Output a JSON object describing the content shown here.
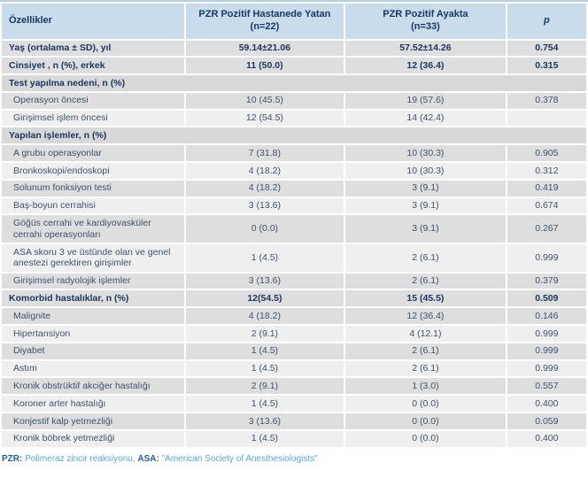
{
  "colors": {
    "header_bg": "#c8dcec",
    "row_dark_bg": "#dedede",
    "row_light_bg": "#efefef",
    "section_bg": "#d8d8d8",
    "heading_text": "#17375e",
    "body_text": "#3f5169",
    "footnote_abbr": "#1c5f93",
    "footnote_text": "#58a6d2"
  },
  "table": {
    "columns": [
      {
        "label": "Özellikler",
        "sub": ""
      },
      {
        "label": "PZR Pozitif Hastanede Yatan",
        "sub": "(n=22)"
      },
      {
        "label": "PZR Pozitif Ayakta",
        "sub": "(n=33)"
      },
      {
        "label": "p",
        "sub": ""
      }
    ],
    "rows": [
      {
        "label": "Yaş (ortalama ± SD), yıl",
        "bold": true,
        "indent": false,
        "shade": "dark",
        "section": false,
        "values": [
          "59.14±21.06",
          "57.52±14.26",
          "0.754"
        ]
      },
      {
        "label": "Cinsiyet , n (%), erkek",
        "bold": true,
        "indent": false,
        "shade": "dark",
        "section": false,
        "values": [
          "11 (50.0)",
          "12 (36.4)",
          "0.315"
        ]
      },
      {
        "label": "Test yapılma nedeni, n (%)",
        "bold": true,
        "indent": false,
        "shade": "dark",
        "section": true,
        "values": []
      },
      {
        "label": "Operasyon öncesi",
        "bold": false,
        "indent": true,
        "shade": "dark",
        "section": false,
        "values": [
          "10 (45.5)",
          "19 (57.6)",
          "0.378"
        ]
      },
      {
        "label": "Girişimsel işlem öncesi",
        "bold": false,
        "indent": true,
        "shade": "light",
        "section": false,
        "values": [
          "12 (54.5)",
          "14 (42.4)",
          ""
        ]
      },
      {
        "label": "Yapılan işlemler, n (%)",
        "bold": true,
        "indent": false,
        "shade": "dark",
        "section": true,
        "values": []
      },
      {
        "label": "A grubu operasyonlar",
        "bold": false,
        "indent": true,
        "shade": "dark",
        "section": false,
        "values": [
          "7 (31.8)",
          "10 (30.3)",
          "0.905"
        ]
      },
      {
        "label": "Bronkoskopi/endoskopi",
        "bold": false,
        "indent": true,
        "shade": "light",
        "section": false,
        "values": [
          "4 (18.2)",
          "10 (30.3)",
          "0.312"
        ]
      },
      {
        "label": "Solunum fonksiyon testi",
        "bold": false,
        "indent": true,
        "shade": "dark",
        "section": false,
        "values": [
          "4 (18.2)",
          "3 (9.1)",
          "0.419"
        ]
      },
      {
        "label": "Baş-boyun cerrahisi",
        "bold": false,
        "indent": true,
        "shade": "light",
        "section": false,
        "values": [
          "3 (13.6)",
          "3 (9.1)",
          "0.674"
        ]
      },
      {
        "label": "Göğüs cerrahi ve kardiyovasküler cerrahi operasyonları",
        "bold": false,
        "indent": true,
        "shade": "dark",
        "section": false,
        "values": [
          "0 (0.0)",
          "3 (9.1)",
          "0.267"
        ]
      },
      {
        "label": "ASA skoru 3 ve üstünde olan ve genel anestezi gerektiren girişimler",
        "bold": false,
        "indent": true,
        "shade": "light",
        "section": false,
        "values": [
          "1 (4.5)",
          "2 (6.1)",
          "0.999"
        ]
      },
      {
        "label": "Girişimsel radyolojik işlemler",
        "bold": false,
        "indent": true,
        "shade": "dark",
        "section": false,
        "values": [
          "3 (13.6)",
          "2 (6.1)",
          "0.379"
        ]
      },
      {
        "label": "Komorbid hastalıklar, n (%)",
        "bold": true,
        "indent": false,
        "shade": "dark",
        "section": false,
        "values": [
          "12(54.5)",
          "15 (45.5)",
          "0.509"
        ]
      },
      {
        "label": "Malignite",
        "bold": false,
        "indent": true,
        "shade": "dark",
        "section": false,
        "values": [
          "4 (18.2)",
          "12 (36.4)",
          "0.146"
        ]
      },
      {
        "label": "Hipertansiyon",
        "bold": false,
        "indent": true,
        "shade": "light",
        "section": false,
        "values": [
          "2 (9.1)",
          "4 (12.1)",
          "0.999"
        ]
      },
      {
        "label": "Diyabet",
        "bold": false,
        "indent": true,
        "shade": "dark",
        "section": false,
        "values": [
          "1 (4.5)",
          "2 (6.1)",
          "0.999"
        ]
      },
      {
        "label": "Astım",
        "bold": false,
        "indent": true,
        "shade": "light",
        "section": false,
        "values": [
          "1 (4.5)",
          "2 (6.1)",
          "0.999"
        ]
      },
      {
        "label": "Kronik obstrüktif akciğer hastalığı",
        "bold": false,
        "indent": true,
        "shade": "dark",
        "section": false,
        "values": [
          "2 (9.1)",
          "1 (3.0)",
          "0.557"
        ]
      },
      {
        "label": "Koroner arter hastalığı",
        "bold": false,
        "indent": true,
        "shade": "light",
        "section": false,
        "values": [
          "1 (4.5)",
          "0 (0.0)",
          "0.400"
        ]
      },
      {
        "label": "Konjestif kalp yetmezliği",
        "bold": false,
        "indent": true,
        "shade": "dark",
        "section": false,
        "values": [
          "3 (13.6)",
          "0 (0.0)",
          "0.059"
        ]
      },
      {
        "label": "Kronik böbrek yetmezliği",
        "bold": false,
        "indent": true,
        "shade": "light",
        "section": false,
        "values": [
          "1 (4.5)",
          "0 (0.0)",
          "0.400"
        ]
      }
    ]
  },
  "footnote": {
    "pzr_label": "PZR:",
    "pzr_text": " Polimeraz zincir reaksiyonu, ",
    "asa_label": "ASA:",
    "asa_text": " \"American Society of Anesthesiologists\""
  }
}
